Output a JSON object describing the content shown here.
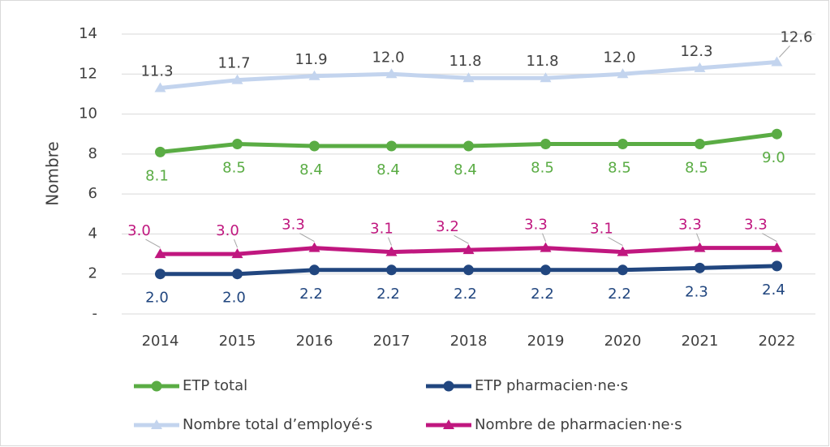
{
  "chart_data": {
    "type": "line",
    "y_label": "Nombre",
    "categories": [
      "2014",
      "2015",
      "2016",
      "2017",
      "2018",
      "2019",
      "2020",
      "2021",
      "2022"
    ],
    "ylim": [
      0,
      14
    ],
    "yticks": [
      {
        "value": 0,
        "label": "-"
      },
      2,
      4,
      6,
      8,
      10,
      12,
      14
    ],
    "grid": true,
    "legend": "bottom",
    "series": [
      {
        "name": "ETP total",
        "color": "#5aac44",
        "marker": "circle",
        "values": [
          8.1,
          8.5,
          8.4,
          8.4,
          8.4,
          8.5,
          8.5,
          8.5,
          9.0
        ],
        "value_labels": [
          "8.1",
          "8.5",
          "8.4",
          "8.4",
          "8.4",
          "8.5",
          "8.5",
          "8.5",
          "9.0"
        ]
      },
      {
        "name": "ETP pharmacien·ne·s",
        "color": "#21467f",
        "marker": "circle",
        "values": [
          2.0,
          2.0,
          2.2,
          2.2,
          2.2,
          2.2,
          2.2,
          2.3,
          2.4
        ],
        "value_labels": [
          "2.0",
          "2.0",
          "2.2",
          "2.2",
          "2.2",
          "2.2",
          "2.2",
          "2.3",
          "2.4"
        ]
      },
      {
        "name": "Nombre total d’employé·s",
        "color": "#c3d4ee",
        "marker": "triangle",
        "values": [
          11.3,
          11.7,
          11.9,
          12.0,
          11.8,
          11.8,
          12.0,
          12.3,
          12.6
        ],
        "value_labels": [
          "11.3",
          "11.7",
          "11.9",
          "12.0",
          "11.8",
          "11.8",
          "12.0",
          "12.3",
          "12.6"
        ]
      },
      {
        "name": "Nombre de pharmacien·ne·s",
        "color": "#c0177f",
        "marker": "triangle",
        "values": [
          3.0,
          3.0,
          3.3,
          3.1,
          3.2,
          3.3,
          3.1,
          3.3,
          3.3
        ],
        "value_labels": [
          "3.0",
          "3.0",
          "3.3",
          "3.1",
          "3.2",
          "3.3",
          "3.1",
          "3.3",
          "3.3"
        ]
      }
    ]
  }
}
